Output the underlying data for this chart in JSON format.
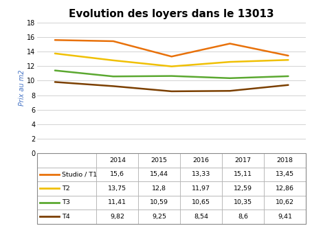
{
  "title": "Evolution des loyers dans le 13013",
  "years": [
    2014,
    2015,
    2016,
    2017,
    2018
  ],
  "series": [
    {
      "label": "Studio / T1",
      "values": [
        15.6,
        15.44,
        13.33,
        15.11,
        13.45
      ],
      "color": "#E8710A"
    },
    {
      "label": "T2",
      "values": [
        13.75,
        12.8,
        11.97,
        12.59,
        12.86
      ],
      "color": "#F0C004"
    },
    {
      "label": "T3",
      "values": [
        11.41,
        10.59,
        10.65,
        10.35,
        10.62
      ],
      "color": "#5BA830"
    },
    {
      "label": "T4",
      "values": [
        9.82,
        9.25,
        8.54,
        8.6,
        9.41
      ],
      "color": "#7B3F00"
    }
  ],
  "ylabel": "Prix au m2",
  "ylim": [
    0,
    18
  ],
  "yticks": [
    0,
    2,
    4,
    6,
    8,
    10,
    12,
    14,
    16,
    18
  ],
  "grid_color": "#C0C0C0",
  "background_color": "#FFFFFF",
  "line_width": 1.8,
  "table_border_color": "#AAAAAA",
  "title_fontsize": 11,
  "ylabel_fontsize": 7,
  "tick_fontsize": 7,
  "table_fontsize": 6.8
}
